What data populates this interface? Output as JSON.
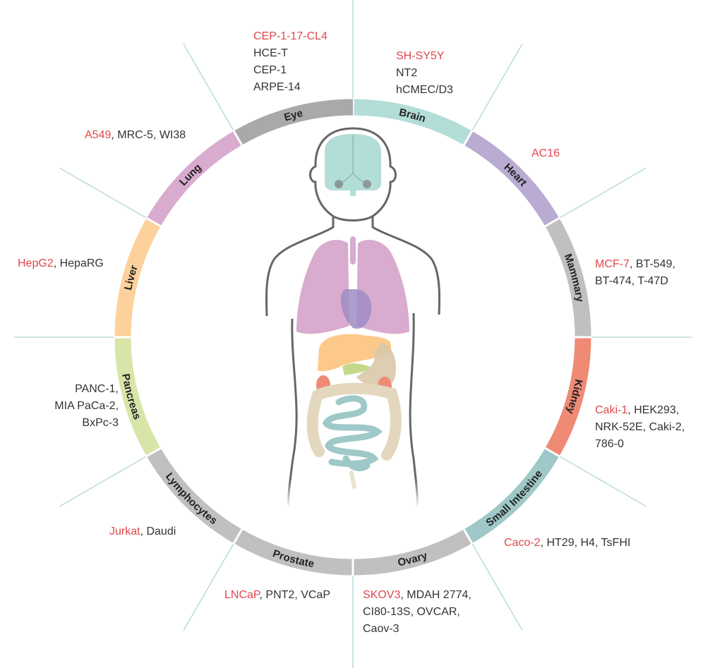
{
  "colors": {
    "highlight": "#e0474c",
    "text": "#333333",
    "divider": "#b9dcd8",
    "outline": "#666666"
  },
  "segments": [
    {
      "name": "Brain",
      "color": "#b3ddd7",
      "lines": [
        {
          "red": "SH-SY5Y",
          "rest": ""
        },
        {
          "rest": "NT2"
        },
        {
          "rest": "hCMEC/D3"
        }
      ]
    },
    {
      "name": "Heart",
      "color": "#b9abd1",
      "lines": [
        {
          "red": "AC16",
          "rest": ""
        }
      ]
    },
    {
      "name": "Mammary",
      "color": "#c1bfbf",
      "lines": [
        {
          "red": "MCF-7",
          "rest": ", BT-549,"
        },
        {
          "rest": "BT-474, T-47D"
        }
      ]
    },
    {
      "name": "Kidney",
      "color": "#ef8a75",
      "lines": [
        {
          "red": "Caki-1",
          "rest": ", HEK293,"
        },
        {
          "rest": "NRK-52E, Caki-2,"
        },
        {
          "rest": "786-0"
        }
      ]
    },
    {
      "name": "Small Intestine",
      "color": "#9fc8c8",
      "lines": [
        {
          "red": "Caco-2",
          "rest": ", HT29, H4, TsFHI"
        }
      ]
    },
    {
      "name": "Ovary",
      "color": "#c1bfbf",
      "lines": [
        {
          "red": "SKOV3",
          "rest": ", MDAH 2774,"
        },
        {
          "rest": "CI80-13S, OVCAR,"
        },
        {
          "rest": "Caov-3"
        }
      ]
    },
    {
      "name": "Prostate",
      "color": "#c1bfbf",
      "lines": [
        {
          "red": "LNCaP",
          "rest": ", PNT2, VCaP"
        }
      ]
    },
    {
      "name": "Lymphocytes",
      "color": "#c1bfbf",
      "lines": [
        {
          "red": "Jurkat",
          "rest": ", Daudi"
        }
      ]
    },
    {
      "name": "Pancreas",
      "color": "#d7e6a8",
      "lines": [
        {
          "rest": "PANC-1,"
        },
        {
          "rest": "MIA PaCa-2,"
        },
        {
          "rest": "BxPc-3"
        }
      ]
    },
    {
      "name": "Liver",
      "color": "#fdd19b",
      "lines": [
        {
          "red": "HepG2",
          "rest": ", HepaRG"
        }
      ]
    },
    {
      "name": "Lung",
      "color": "#d9abcf",
      "lines": [
        {
          "red": "A549",
          "rest": ", MRC-5, WI38"
        }
      ]
    },
    {
      "name": "Eye",
      "color": "#aaa8a9",
      "lines": [
        {
          "red": "CEP-1-17-CL4",
          "rest": ""
        },
        {
          "rest": "HCE-T"
        },
        {
          "rest": "CEP-1"
        },
        {
          "rest": "ARPE-14"
        }
      ]
    }
  ]
}
